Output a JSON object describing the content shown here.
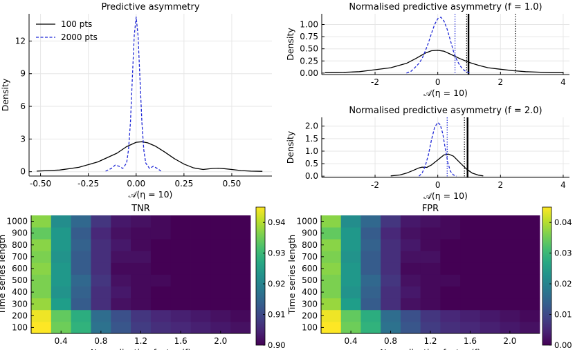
{
  "colors": {
    "series_100": "#000000",
    "series_2000": "#1f28d6",
    "grid": "#e6e6e6",
    "colormap": "viridis"
  },
  "chart_data": [
    {
      "id": "asym",
      "type": "line",
      "title": "Predictive asymmetry",
      "xlabel": "𝒜(η = 10)",
      "ylabel": "Density",
      "xlim": [
        -0.56,
        0.71
      ],
      "ylim": [
        -0.4,
        14.5
      ],
      "xticks": [
        -0.5,
        -0.25,
        0.0,
        0.25,
        0.5
      ],
      "xtick_labels": [
        "-0.50",
        "-0.25",
        "0.00",
        "0.25",
        "0.50"
      ],
      "yticks": [
        0,
        3,
        6,
        9,
        12
      ],
      "ytick_labels": [
        "0",
        "3",
        "6",
        "9",
        "12"
      ],
      "grid": true,
      "legend": {
        "placement": "top-left",
        "entries": [
          "100 pts",
          "2000 pts"
        ]
      },
      "series": [
        {
          "name": "100 pts",
          "style": "solid",
          "x": [
            -0.52,
            -0.4,
            -0.3,
            -0.2,
            -0.1,
            -0.05,
            0.0,
            0.03,
            0.06,
            0.1,
            0.15,
            0.2,
            0.25,
            0.3,
            0.35,
            0.4,
            0.43,
            0.46,
            0.5,
            0.55,
            0.6,
            0.66
          ],
          "y": [
            0.05,
            0.15,
            0.4,
            0.9,
            1.7,
            2.3,
            2.7,
            2.75,
            2.65,
            2.35,
            1.8,
            1.2,
            0.7,
            0.35,
            0.2,
            0.3,
            0.32,
            0.28,
            0.2,
            0.1,
            0.05,
            0.03
          ]
        },
        {
          "name": "2000 pts",
          "style": "dashed",
          "x": [
            -0.16,
            -0.13,
            -0.11,
            -0.09,
            -0.07,
            -0.05,
            -0.04,
            -0.03,
            -0.02,
            -0.01,
            0.0,
            0.01,
            0.02,
            0.03,
            0.04,
            0.05,
            0.07,
            0.09,
            0.11,
            0.13
          ],
          "y": [
            0.05,
            0.3,
            0.6,
            0.5,
            0.3,
            0.8,
            2.0,
            4.5,
            8.5,
            12.5,
            14.2,
            12.5,
            8.5,
            4.5,
            2.0,
            0.8,
            0.3,
            0.5,
            0.3,
            0.05
          ]
        }
      ]
    },
    {
      "id": "norm1",
      "type": "line",
      "title": "Normalised predictive asymmetry (f = 1.0)",
      "xlabel": "𝒜(η = 10)",
      "ylabel": "Density",
      "xlim": [
        -3.7,
        4.2
      ],
      "ylim": [
        -0.03,
        1.22
      ],
      "xticks": [
        -2,
        0,
        2,
        4
      ],
      "xtick_labels": [
        "-2",
        "0",
        "2",
        "4"
      ],
      "yticks": [
        0.0,
        0.25,
        0.5,
        0.75,
        1.0
      ],
      "ytick_labels": [
        "0.00",
        "0.25",
        "0.50",
        "0.75",
        "1.00"
      ],
      "grid": true,
      "vlines": [
        {
          "x": 0.55,
          "style": "dotted",
          "series": "2000 pts"
        },
        {
          "x": 0.92,
          "style": "dotted",
          "series": "100 pts"
        },
        {
          "x": 0.98,
          "style": "solid-thick",
          "series": "100 pts"
        },
        {
          "x": 2.48,
          "style": "dotted",
          "series": "100 pts"
        }
      ],
      "series": [
        {
          "name": "100 pts",
          "style": "solid",
          "x": [
            -3.6,
            -3.0,
            -2.5,
            -2.0,
            -1.5,
            -1.0,
            -0.7,
            -0.4,
            -0.2,
            0.0,
            0.2,
            0.4,
            0.7,
            1.0,
            1.3,
            1.6,
            2.0,
            2.4,
            2.8,
            3.2,
            3.6,
            4.0
          ],
          "y": [
            0.01,
            0.015,
            0.03,
            0.07,
            0.11,
            0.2,
            0.3,
            0.41,
            0.46,
            0.47,
            0.45,
            0.39,
            0.3,
            0.22,
            0.16,
            0.11,
            0.08,
            0.05,
            0.03,
            0.02,
            0.01,
            0.01
          ]
        },
        {
          "name": "2000 pts",
          "style": "dashed",
          "x": [
            -1.0,
            -0.85,
            -0.7,
            -0.6,
            -0.5,
            -0.4,
            -0.3,
            -0.2,
            -0.1,
            0.0,
            0.1,
            0.2,
            0.3,
            0.4,
            0.5,
            0.6,
            0.7,
            0.8,
            0.9,
            1.0,
            1.05
          ],
          "y": [
            0.0,
            0.04,
            0.13,
            0.2,
            0.3,
            0.45,
            0.62,
            0.82,
            1.0,
            1.12,
            1.15,
            1.07,
            0.9,
            0.68,
            0.45,
            0.28,
            0.16,
            0.08,
            0.03,
            0.01,
            0.0
          ]
        }
      ]
    },
    {
      "id": "norm2",
      "type": "line",
      "title": "Normalised predictive asymmetry (f = 2.0)",
      "xlabel": "𝒜(η = 10)",
      "ylabel": "Density",
      "xlim": [
        -3.7,
        4.2
      ],
      "ylim": [
        -0.05,
        2.35
      ],
      "xticks": [
        -2,
        0,
        2,
        4
      ],
      "xtick_labels": [
        "-2",
        "0",
        "2",
        "4"
      ],
      "yticks": [
        0.0,
        0.5,
        1.0,
        1.5,
        2.0
      ],
      "ytick_labels": [
        "0.0",
        "0.5",
        "1.0",
        "1.5",
        "2.0"
      ],
      "grid": true,
      "vlines": [
        {
          "x": 0.3,
          "style": "dotted",
          "series": "2000 pts"
        },
        {
          "x": 0.85,
          "style": "dotted",
          "series": "100 pts"
        },
        {
          "x": 0.95,
          "style": "solid-thick",
          "series": "100 pts"
        }
      ],
      "series": [
        {
          "name": "100 pts",
          "style": "solid",
          "x": [
            -1.5,
            -1.2,
            -1.0,
            -0.8,
            -0.6,
            -0.5,
            -0.35,
            -0.2,
            0.0,
            0.2,
            0.35,
            0.5,
            0.7,
            0.9,
            1.1,
            1.3,
            1.45
          ],
          "y": [
            0.01,
            0.05,
            0.12,
            0.22,
            0.33,
            0.36,
            0.35,
            0.45,
            0.65,
            0.85,
            0.88,
            0.8,
            0.55,
            0.3,
            0.12,
            0.04,
            0.01
          ]
        },
        {
          "name": "2000 pts",
          "style": "dashed",
          "x": [
            -0.6,
            -0.5,
            -0.4,
            -0.3,
            -0.2,
            -0.1,
            0.0,
            0.08,
            0.16,
            0.24,
            0.32,
            0.4,
            0.5,
            0.6
          ],
          "y": [
            0.0,
            0.12,
            0.4,
            0.85,
            1.45,
            1.95,
            2.15,
            2.05,
            1.7,
            1.1,
            0.55,
            0.2,
            0.05,
            0.0
          ]
        }
      ]
    },
    {
      "id": "tnr",
      "type": "heatmap",
      "title": "TNR",
      "xlabel": "Normalisation factor (f)",
      "ylabel": "Time series length",
      "x": [
        0.2,
        0.4,
        0.6,
        0.8,
        1.0,
        1.2,
        1.4,
        1.6,
        1.8,
        2.0,
        2.2
      ],
      "xticks": [
        0.4,
        0.8,
        1.2,
        1.6,
        2.0
      ],
      "xtick_labels": [
        "0.4",
        "0.8",
        "1.2",
        "1.6",
        "2.0"
      ],
      "y": [
        100,
        200,
        300,
        400,
        500,
        600,
        700,
        800,
        900,
        1000
      ],
      "ytick_labels": [
        "100",
        "200",
        "300",
        "400",
        "500",
        "600",
        "700",
        "800",
        "900",
        "1000"
      ],
      "clim": [
        0.9,
        0.945
      ],
      "cbar_ticks": [
        0.9,
        0.91,
        0.92,
        0.93,
        0.94
      ],
      "cbar_tick_labels": [
        "0.90",
        "0.91",
        "0.92",
        "0.93",
        "0.94"
      ],
      "values": [
        [
          0.945,
          0.935,
          0.929,
          0.917,
          0.912,
          0.908,
          0.906,
          0.905,
          0.904,
          0.903,
          0.902
        ],
        [
          0.944,
          0.934,
          0.928,
          0.916,
          0.911,
          0.907,
          0.905,
          0.904,
          0.903,
          0.902,
          0.901
        ],
        [
          0.938,
          0.925,
          0.913,
          0.906,
          0.902,
          0.901,
          0.9,
          0.9,
          0.9,
          0.9,
          0.9
        ],
        [
          0.936,
          0.923,
          0.914,
          0.906,
          0.903,
          0.901,
          0.9,
          0.9,
          0.9,
          0.9,
          0.9
        ],
        [
          0.936,
          0.924,
          0.915,
          0.907,
          0.902,
          0.901,
          0.901,
          0.9,
          0.9,
          0.9,
          0.9
        ],
        [
          0.937,
          0.924,
          0.913,
          0.906,
          0.901,
          0.901,
          0.9,
          0.9,
          0.9,
          0.9,
          0.9
        ],
        [
          0.936,
          0.923,
          0.913,
          0.906,
          0.902,
          0.902,
          0.9,
          0.9,
          0.9,
          0.9,
          0.9
        ],
        [
          0.937,
          0.924,
          0.914,
          0.906,
          0.903,
          0.901,
          0.9,
          0.9,
          0.9,
          0.9,
          0.9
        ],
        [
          0.934,
          0.924,
          0.913,
          0.905,
          0.902,
          0.901,
          0.901,
          0.9,
          0.9,
          0.9,
          0.9
        ],
        [
          0.937,
          0.922,
          0.915,
          0.907,
          0.903,
          0.902,
          0.901,
          0.9,
          0.9,
          0.9,
          0.9
        ]
      ]
    },
    {
      "id": "fpr",
      "type": "heatmap",
      "title": "FPR",
      "xlabel": "Normalisation factor (f)",
      "ylabel": "Time series length",
      "x": [
        0.2,
        0.4,
        0.6,
        0.8,
        1.0,
        1.2,
        1.4,
        1.6,
        1.8,
        2.0,
        2.2
      ],
      "xticks": [
        0.4,
        0.8,
        1.2,
        1.6,
        2.0
      ],
      "xtick_labels": [
        "0.4",
        "0.8",
        "1.2",
        "1.6",
        "2.0"
      ],
      "y": [
        100,
        200,
        300,
        400,
        500,
        600,
        700,
        800,
        900,
        1000
      ],
      "ytick_labels": [
        "100",
        "200",
        "300",
        "400",
        "500",
        "600",
        "700",
        "800",
        "900",
        "1000"
      ],
      "clim": [
        0.0,
        0.045
      ],
      "cbar_ticks": [
        0.0,
        0.01,
        0.02,
        0.03,
        0.04
      ],
      "cbar_tick_labels": [
        "0.00",
        "0.01",
        "0.02",
        "0.03",
        "0.04"
      ],
      "values": [
        [
          0.045,
          0.035,
          0.029,
          0.017,
          0.012,
          0.008,
          0.006,
          0.005,
          0.004,
          0.003,
          0.002
        ],
        [
          0.044,
          0.034,
          0.028,
          0.016,
          0.011,
          0.007,
          0.005,
          0.004,
          0.003,
          0.002,
          0.001
        ],
        [
          0.038,
          0.025,
          0.013,
          0.006,
          0.002,
          0.001,
          0.0,
          0.0,
          0.0,
          0.0,
          0.0
        ],
        [
          0.036,
          0.023,
          0.014,
          0.006,
          0.003,
          0.001,
          0.0,
          0.0,
          0.0,
          0.0,
          0.0
        ],
        [
          0.036,
          0.024,
          0.015,
          0.007,
          0.002,
          0.001,
          0.001,
          0.0,
          0.0,
          0.0,
          0.0
        ],
        [
          0.037,
          0.024,
          0.013,
          0.006,
          0.001,
          0.001,
          0.0,
          0.0,
          0.0,
          0.0,
          0.0
        ],
        [
          0.036,
          0.023,
          0.013,
          0.006,
          0.002,
          0.002,
          0.0,
          0.0,
          0.0,
          0.0,
          0.0
        ],
        [
          0.037,
          0.024,
          0.014,
          0.006,
          0.003,
          0.001,
          0.0,
          0.0,
          0.0,
          0.0,
          0.0
        ],
        [
          0.034,
          0.024,
          0.013,
          0.005,
          0.002,
          0.001,
          0.001,
          0.0,
          0.0,
          0.0,
          0.0
        ],
        [
          0.037,
          0.022,
          0.015,
          0.007,
          0.003,
          0.002,
          0.001,
          0.0,
          0.0,
          0.0,
          0.0
        ]
      ]
    }
  ]
}
